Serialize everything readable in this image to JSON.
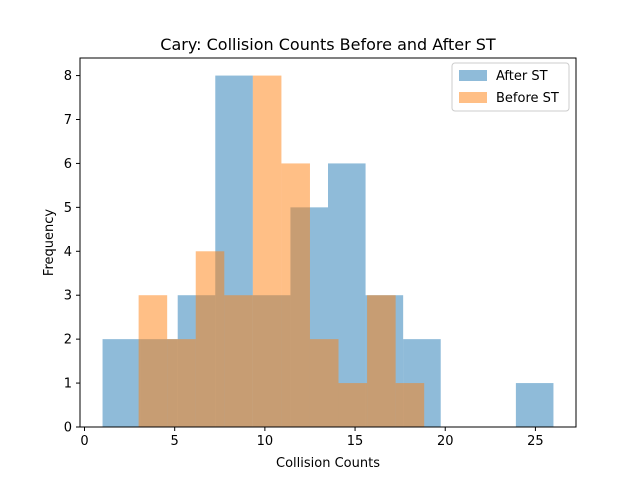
{
  "chart_data": {
    "type": "histogram",
    "title": "Cary: Collision Counts Before and After ST",
    "xlabel": "Collision Counts",
    "ylabel": "Frequency",
    "xlim": [
      -0.25,
      27.25
    ],
    "ylim": [
      0,
      8.4
    ],
    "xticks": [
      0,
      5,
      10,
      15,
      20,
      25
    ],
    "yticks": [
      0,
      1,
      2,
      3,
      4,
      5,
      6,
      7,
      8
    ],
    "legend_position": "top-right",
    "series": [
      {
        "name": "After ST",
        "color": "#1f77b4",
        "alpha": 0.5,
        "bin_edges": [
          1.0,
          3.083,
          5.167,
          7.25,
          9.333,
          11.417,
          13.5,
          15.583,
          17.667,
          19.75,
          21.833,
          23.917,
          26.0
        ],
        "counts": [
          2,
          2,
          3,
          8,
          3,
          5,
          6,
          3,
          2,
          0,
          0,
          1
        ]
      },
      {
        "name": "Before ST",
        "color": "#ff7f0e",
        "alpha": 0.5,
        "bin_edges": [
          3.0,
          4.583,
          6.167,
          7.75,
          9.333,
          10.917,
          12.5,
          14.083,
          15.667,
          17.25,
          18.833
        ],
        "counts": [
          3,
          2,
          4,
          3,
          8,
          6,
          2,
          1,
          3,
          1
        ]
      }
    ]
  }
}
